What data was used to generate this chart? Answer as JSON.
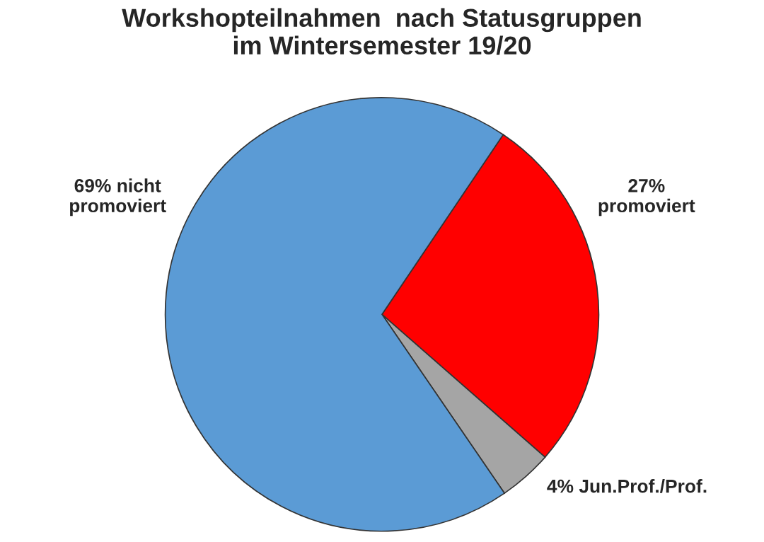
{
  "chart_data": {
    "type": "pie",
    "title": "Workshopteilnahmen  nach Statusgruppen\nim Wintersemester 19/20",
    "categories": [
      "promoviert",
      "Jun.Prof./Prof.",
      "nicht promoviert"
    ],
    "values": [
      27,
      4,
      69
    ],
    "value_labels": [
      "27%",
      "4%",
      "69%"
    ],
    "colors": [
      "#ff0000",
      "#a5a5a5",
      "#5b9bd5"
    ]
  }
}
